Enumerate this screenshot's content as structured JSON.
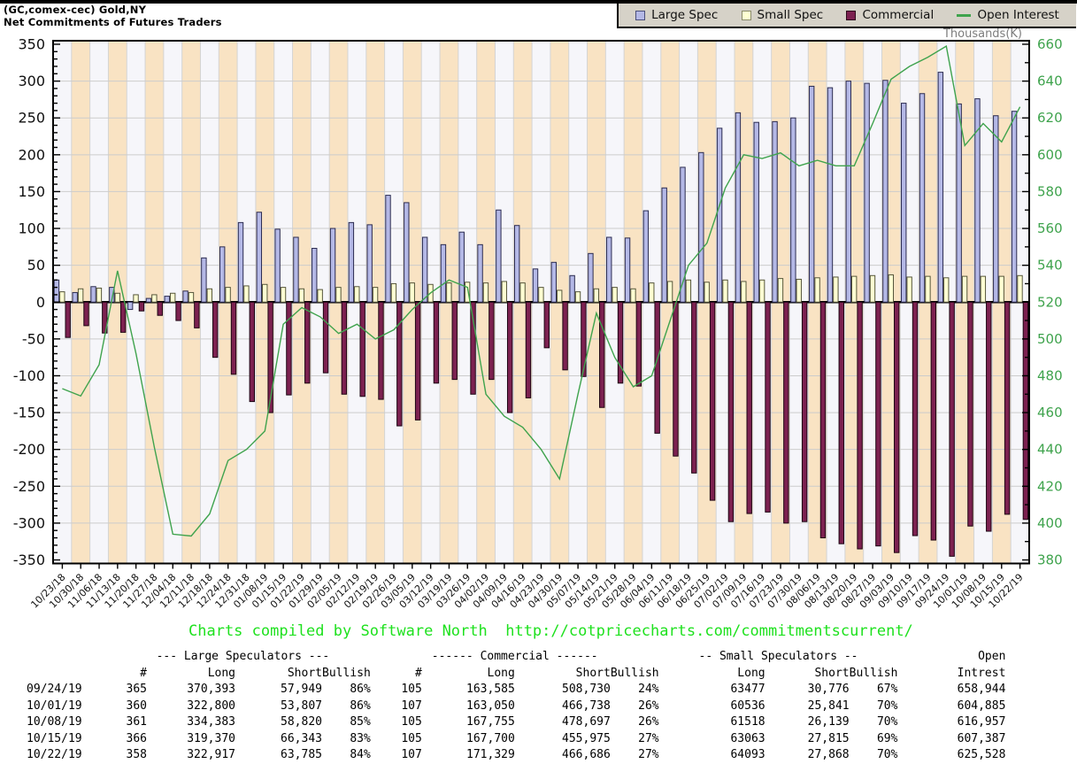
{
  "header": {
    "title_line1": "(GC,comex-cec) Gold,NY",
    "title_line2": "Net Commitments of Futures Traders"
  },
  "legend": {
    "items": [
      {
        "label": "Large Spec",
        "color": "#b4b8e6",
        "border": "#4a4f7a",
        "type": "box"
      },
      {
        "label": "Small Spec",
        "color": "#ffffd2",
        "border": "#8a8a6a",
        "type": "box"
      },
      {
        "label": "Commercial",
        "color": "#7c2150",
        "border": "#2c0a1c",
        "type": "box"
      },
      {
        "label": "Open Interest",
        "color": "#3fa34d",
        "type": "line"
      }
    ]
  },
  "chart_data": {
    "type": "combo",
    "title": "Net Commitments of Futures Traders",
    "categories": [
      "10/23/18",
      "10/30/18",
      "11/06/18",
      "11/13/18",
      "11/20/18",
      "11/27/18",
      "12/04/18",
      "12/11/18",
      "12/18/18",
      "12/24/18",
      "12/31/18",
      "01/08/19",
      "01/15/19",
      "01/22/19",
      "01/29/19",
      "02/05/19",
      "02/12/19",
      "02/19/19",
      "02/26/19",
      "03/05/19",
      "03/12/19",
      "03/19/19",
      "03/26/19",
      "04/02/19",
      "04/09/19",
      "04/16/19",
      "04/23/19",
      "04/30/19",
      "05/07/19",
      "05/14/19",
      "05/21/19",
      "05/28/19",
      "06/04/19",
      "06/11/19",
      "06/18/19",
      "06/25/19",
      "07/02/19",
      "07/09/19",
      "07/16/19",
      "07/23/19",
      "07/30/19",
      "08/06/19",
      "08/13/19",
      "08/20/19",
      "08/27/19",
      "09/03/19",
      "09/10/19",
      "09/17/19",
      "09/24/19",
      "10/01/19",
      "10/08/19",
      "10/15/19",
      "10/22/19"
    ],
    "series": [
      {
        "name": "Large Spec",
        "type": "bar",
        "axis": "left",
        "color": "#b4b8e6",
        "border": "#2b2b50",
        "values": [
          30,
          13,
          21,
          20,
          -10,
          5,
          8,
          15,
          60,
          75,
          108,
          122,
          99,
          88,
          73,
          100,
          108,
          105,
          145,
          135,
          88,
          78,
          95,
          78,
          125,
          104,
          45,
          54,
          36,
          66,
          88,
          87,
          124,
          155,
          183,
          203,
          236,
          257,
          244,
          245,
          250,
          293,
          291,
          300,
          297,
          301,
          270,
          283,
          312,
          269,
          276,
          253,
          259
        ]
      },
      {
        "name": "Small Spec",
        "type": "bar",
        "axis": "left",
        "color": "#ffffd2",
        "border": "#55553a",
        "values": [
          14,
          18,
          19,
          12,
          10,
          10,
          12,
          13,
          18,
          20,
          22,
          24,
          20,
          18,
          17,
          20,
          21,
          20,
          25,
          26,
          24,
          26,
          27,
          26,
          28,
          26,
          20,
          16,
          14,
          18,
          20,
          18,
          26,
          28,
          30,
          27,
          30,
          28,
          30,
          32,
          31,
          33,
          34,
          35,
          36,
          37,
          34,
          35,
          33,
          35,
          35,
          35,
          36
        ]
      },
      {
        "name": "Commercial",
        "type": "bar",
        "axis": "left",
        "color": "#7c2150",
        "border": "#1c0512",
        "values": [
          -48,
          -32,
          -42,
          -41,
          -12,
          -18,
          -25,
          -35,
          -75,
          -98,
          -135,
          -150,
          -126,
          -110,
          -96,
          -125,
          -128,
          -132,
          -168,
          -160,
          -110,
          -105,
          -125,
          -105,
          -150,
          -130,
          -62,
          -92,
          -101,
          -143,
          -110,
          -114,
          -178,
          -209,
          -232,
          -269,
          -298,
          -287,
          -285,
          -300,
          -298,
          -320,
          -328,
          -335,
          -331,
          -340,
          -317,
          -323,
          -345,
          -304,
          -311,
          -288,
          -295
        ]
      },
      {
        "name": "Open Interest",
        "type": "line",
        "axis": "right",
        "color": "#3fa34d",
        "values": [
          473,
          469,
          486,
          537,
          492,
          441,
          394,
          393,
          405,
          434,
          440,
          450,
          508,
          517,
          512,
          503,
          508,
          500,
          505,
          516,
          525,
          532,
          528,
          470,
          458,
          452,
          440,
          424,
          470,
          514,
          490,
          474,
          480,
          510,
          540,
          552,
          582,
          600,
          598,
          601,
          594,
          597,
          594,
          594,
          617,
          641,
          648,
          653,
          659,
          605,
          617,
          607,
          626
        ]
      }
    ],
    "left_axis": {
      "min": -350,
      "max": 350,
      "step": 50,
      "minor_step": 10,
      "color": "#111111"
    },
    "right_axis": {
      "min": 380,
      "max": 660,
      "step": 20,
      "minor_step": 10,
      "label": "Thousands(K)",
      "label_color": "#7d7d7d",
      "color": "#3fa34d"
    },
    "grid": true,
    "legend_position": "top-right",
    "plot_stripes": [
      "#f6f6fa",
      "#f9e3c3"
    ]
  },
  "footer": {
    "credit": "Charts compiled by Software North  http://cotpricecharts.com/commitmentscurrent/"
  },
  "table": {
    "group_headers": [
      {
        "label": "",
        "span": 1
      },
      {
        "label": "--- Large Speculators ---",
        "span": 4
      },
      {
        "label": "------ Commercial ------",
        "span": 4
      },
      {
        "label": "-- Small Speculators --",
        "span": 3
      },
      {
        "label": "Open",
        "span": 1
      }
    ],
    "columns": [
      "",
      "#",
      "Long",
      "Short",
      "Bullish",
      "#",
      "Long",
      "Short",
      "Bullish",
      "Long",
      "Short",
      "Bullish",
      "Intrest"
    ],
    "rows": [
      [
        "09/24/19",
        "365",
        "370,393",
        "57,949",
        "86%",
        "105",
        "163,585",
        "508,730",
        "24%",
        "63477",
        "30,776",
        "67%",
        "658,944"
      ],
      [
        "10/01/19",
        "360",
        "322,800",
        "53,807",
        "86%",
        "107",
        "163,050",
        "466,738",
        "26%",
        "60536",
        "25,841",
        "70%",
        "604,885"
      ],
      [
        "10/08/19",
        "361",
        "334,383",
        "58,820",
        "85%",
        "105",
        "167,755",
        "478,697",
        "26%",
        "61518",
        "26,139",
        "70%",
        "616,957"
      ],
      [
        "10/15/19",
        "366",
        "319,370",
        "66,343",
        "83%",
        "105",
        "167,700",
        "455,975",
        "27%",
        "63063",
        "27,815",
        "69%",
        "607,387"
      ],
      [
        "10/22/19",
        "358",
        "322,917",
        "63,785",
        "84%",
        "107",
        "171,329",
        "466,686",
        "27%",
        "64093",
        "27,868",
        "70%",
        "625,528"
      ]
    ]
  }
}
